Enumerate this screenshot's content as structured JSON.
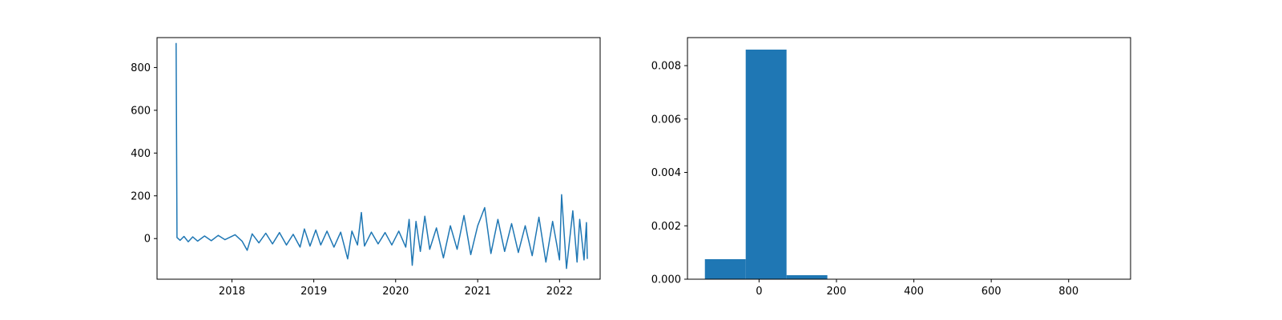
{
  "chart_data": [
    {
      "type": "line",
      "title": "",
      "xlabel": "",
      "ylabel": "",
      "x_axis": "date",
      "xlim": [
        "2017-02-01",
        "2022-07-01"
      ],
      "ylim": [
        -190,
        940
      ],
      "x_ticks": [
        "2018-01-01",
        "2019-01-01",
        "2020-01-01",
        "2021-01-01",
        "2022-01-01"
      ],
      "x_tick_labels": [
        "2018",
        "2019",
        "2020",
        "2021",
        "2022"
      ],
      "y_ticks": [
        0,
        200,
        400,
        600,
        800
      ],
      "y_tick_labels": [
        "0",
        "200",
        "400",
        "600",
        "800"
      ],
      "grid": false,
      "legend": "none",
      "color": "#1f77b4",
      "series": [
        {
          "points": [
            [
              "2017-04-27",
              915
            ],
            [
              "2017-05-01",
              5
            ],
            [
              "2017-05-15",
              -8
            ],
            [
              "2017-06-01",
              10
            ],
            [
              "2017-06-20",
              -15
            ],
            [
              "2017-07-10",
              8
            ],
            [
              "2017-08-01",
              -12
            ],
            [
              "2017-09-01",
              12
            ],
            [
              "2017-10-01",
              -10
            ],
            [
              "2017-11-01",
              15
            ],
            [
              "2017-12-01",
              -5
            ],
            [
              "2018-01-15",
              18
            ],
            [
              "2018-02-15",
              -12
            ],
            [
              "2018-03-10",
              -55
            ],
            [
              "2018-04-01",
              22
            ],
            [
              "2018-05-01",
              -20
            ],
            [
              "2018-06-01",
              25
            ],
            [
              "2018-07-01",
              -25
            ],
            [
              "2018-08-01",
              28
            ],
            [
              "2018-09-01",
              -30
            ],
            [
              "2018-10-01",
              20
            ],
            [
              "2018-11-01",
              -40
            ],
            [
              "2018-11-20",
              45
            ],
            [
              "2018-12-15",
              -35
            ],
            [
              "2019-01-10",
              40
            ],
            [
              "2019-02-01",
              -30
            ],
            [
              "2019-03-01",
              35
            ],
            [
              "2019-04-01",
              -40
            ],
            [
              "2019-05-01",
              30
            ],
            [
              "2019-06-01",
              -95
            ],
            [
              "2019-06-20",
              35
            ],
            [
              "2019-07-15",
              -30
            ],
            [
              "2019-08-01",
              122
            ],
            [
              "2019-08-15",
              -35
            ],
            [
              "2019-09-15",
              30
            ],
            [
              "2019-10-15",
              -25
            ],
            [
              "2019-11-15",
              28
            ],
            [
              "2019-12-15",
              -30
            ],
            [
              "2020-01-15",
              35
            ],
            [
              "2020-02-15",
              -40
            ],
            [
              "2020-03-01",
              90
            ],
            [
              "2020-03-15",
              -125
            ],
            [
              "2020-04-01",
              80
            ],
            [
              "2020-04-20",
              -60
            ],
            [
              "2020-05-10",
              105
            ],
            [
              "2020-06-01",
              -50
            ],
            [
              "2020-07-01",
              50
            ],
            [
              "2020-08-01",
              -90
            ],
            [
              "2020-09-01",
              60
            ],
            [
              "2020-10-01",
              -50
            ],
            [
              "2020-11-01",
              108
            ],
            [
              "2020-12-01",
              -75
            ],
            [
              "2021-01-01",
              60
            ],
            [
              "2021-02-01",
              145
            ],
            [
              "2021-03-01",
              -70
            ],
            [
              "2021-04-01",
              90
            ],
            [
              "2021-05-01",
              -60
            ],
            [
              "2021-06-01",
              70
            ],
            [
              "2021-07-01",
              -65
            ],
            [
              "2021-08-01",
              60
            ],
            [
              "2021-09-01",
              -80
            ],
            [
              "2021-10-01",
              100
            ],
            [
              "2021-11-01",
              -110
            ],
            [
              "2021-12-01",
              80
            ],
            [
              "2022-01-01",
              -100
            ],
            [
              "2022-01-10",
              205
            ],
            [
              "2022-02-01",
              -140
            ],
            [
              "2022-03-01",
              130
            ],
            [
              "2022-03-20",
              -110
            ],
            [
              "2022-04-01",
              90
            ],
            [
              "2022-04-20",
              -100
            ],
            [
              "2022-05-01",
              75
            ],
            [
              "2022-05-05",
              -95
            ]
          ]
        }
      ]
    },
    {
      "type": "histogram",
      "title": "",
      "xlabel": "",
      "ylabel": "",
      "xlim": [
        -185,
        960
      ],
      "ylim": [
        0,
        0.00905
      ],
      "x_ticks": [
        0,
        200,
        400,
        600,
        800
      ],
      "x_tick_labels": [
        "0",
        "200",
        "400",
        "600",
        "800"
      ],
      "y_ticks": [
        0,
        0.002,
        0.004,
        0.006,
        0.008
      ],
      "y_tick_labels": [
        "0.000",
        "0.002",
        "0.004",
        "0.006",
        "0.008"
      ],
      "grid": false,
      "legend": "none",
      "color": "#1f77b4",
      "bin_edges": [
        -140,
        -34.5,
        71,
        176.5,
        282,
        387.5,
        493,
        598.5,
        704,
        809.5,
        915
      ],
      "values": [
        0.00075,
        0.0086,
        0.00015,
        0,
        0,
        0,
        0,
        0,
        0,
        1e-06
      ]
    }
  ]
}
